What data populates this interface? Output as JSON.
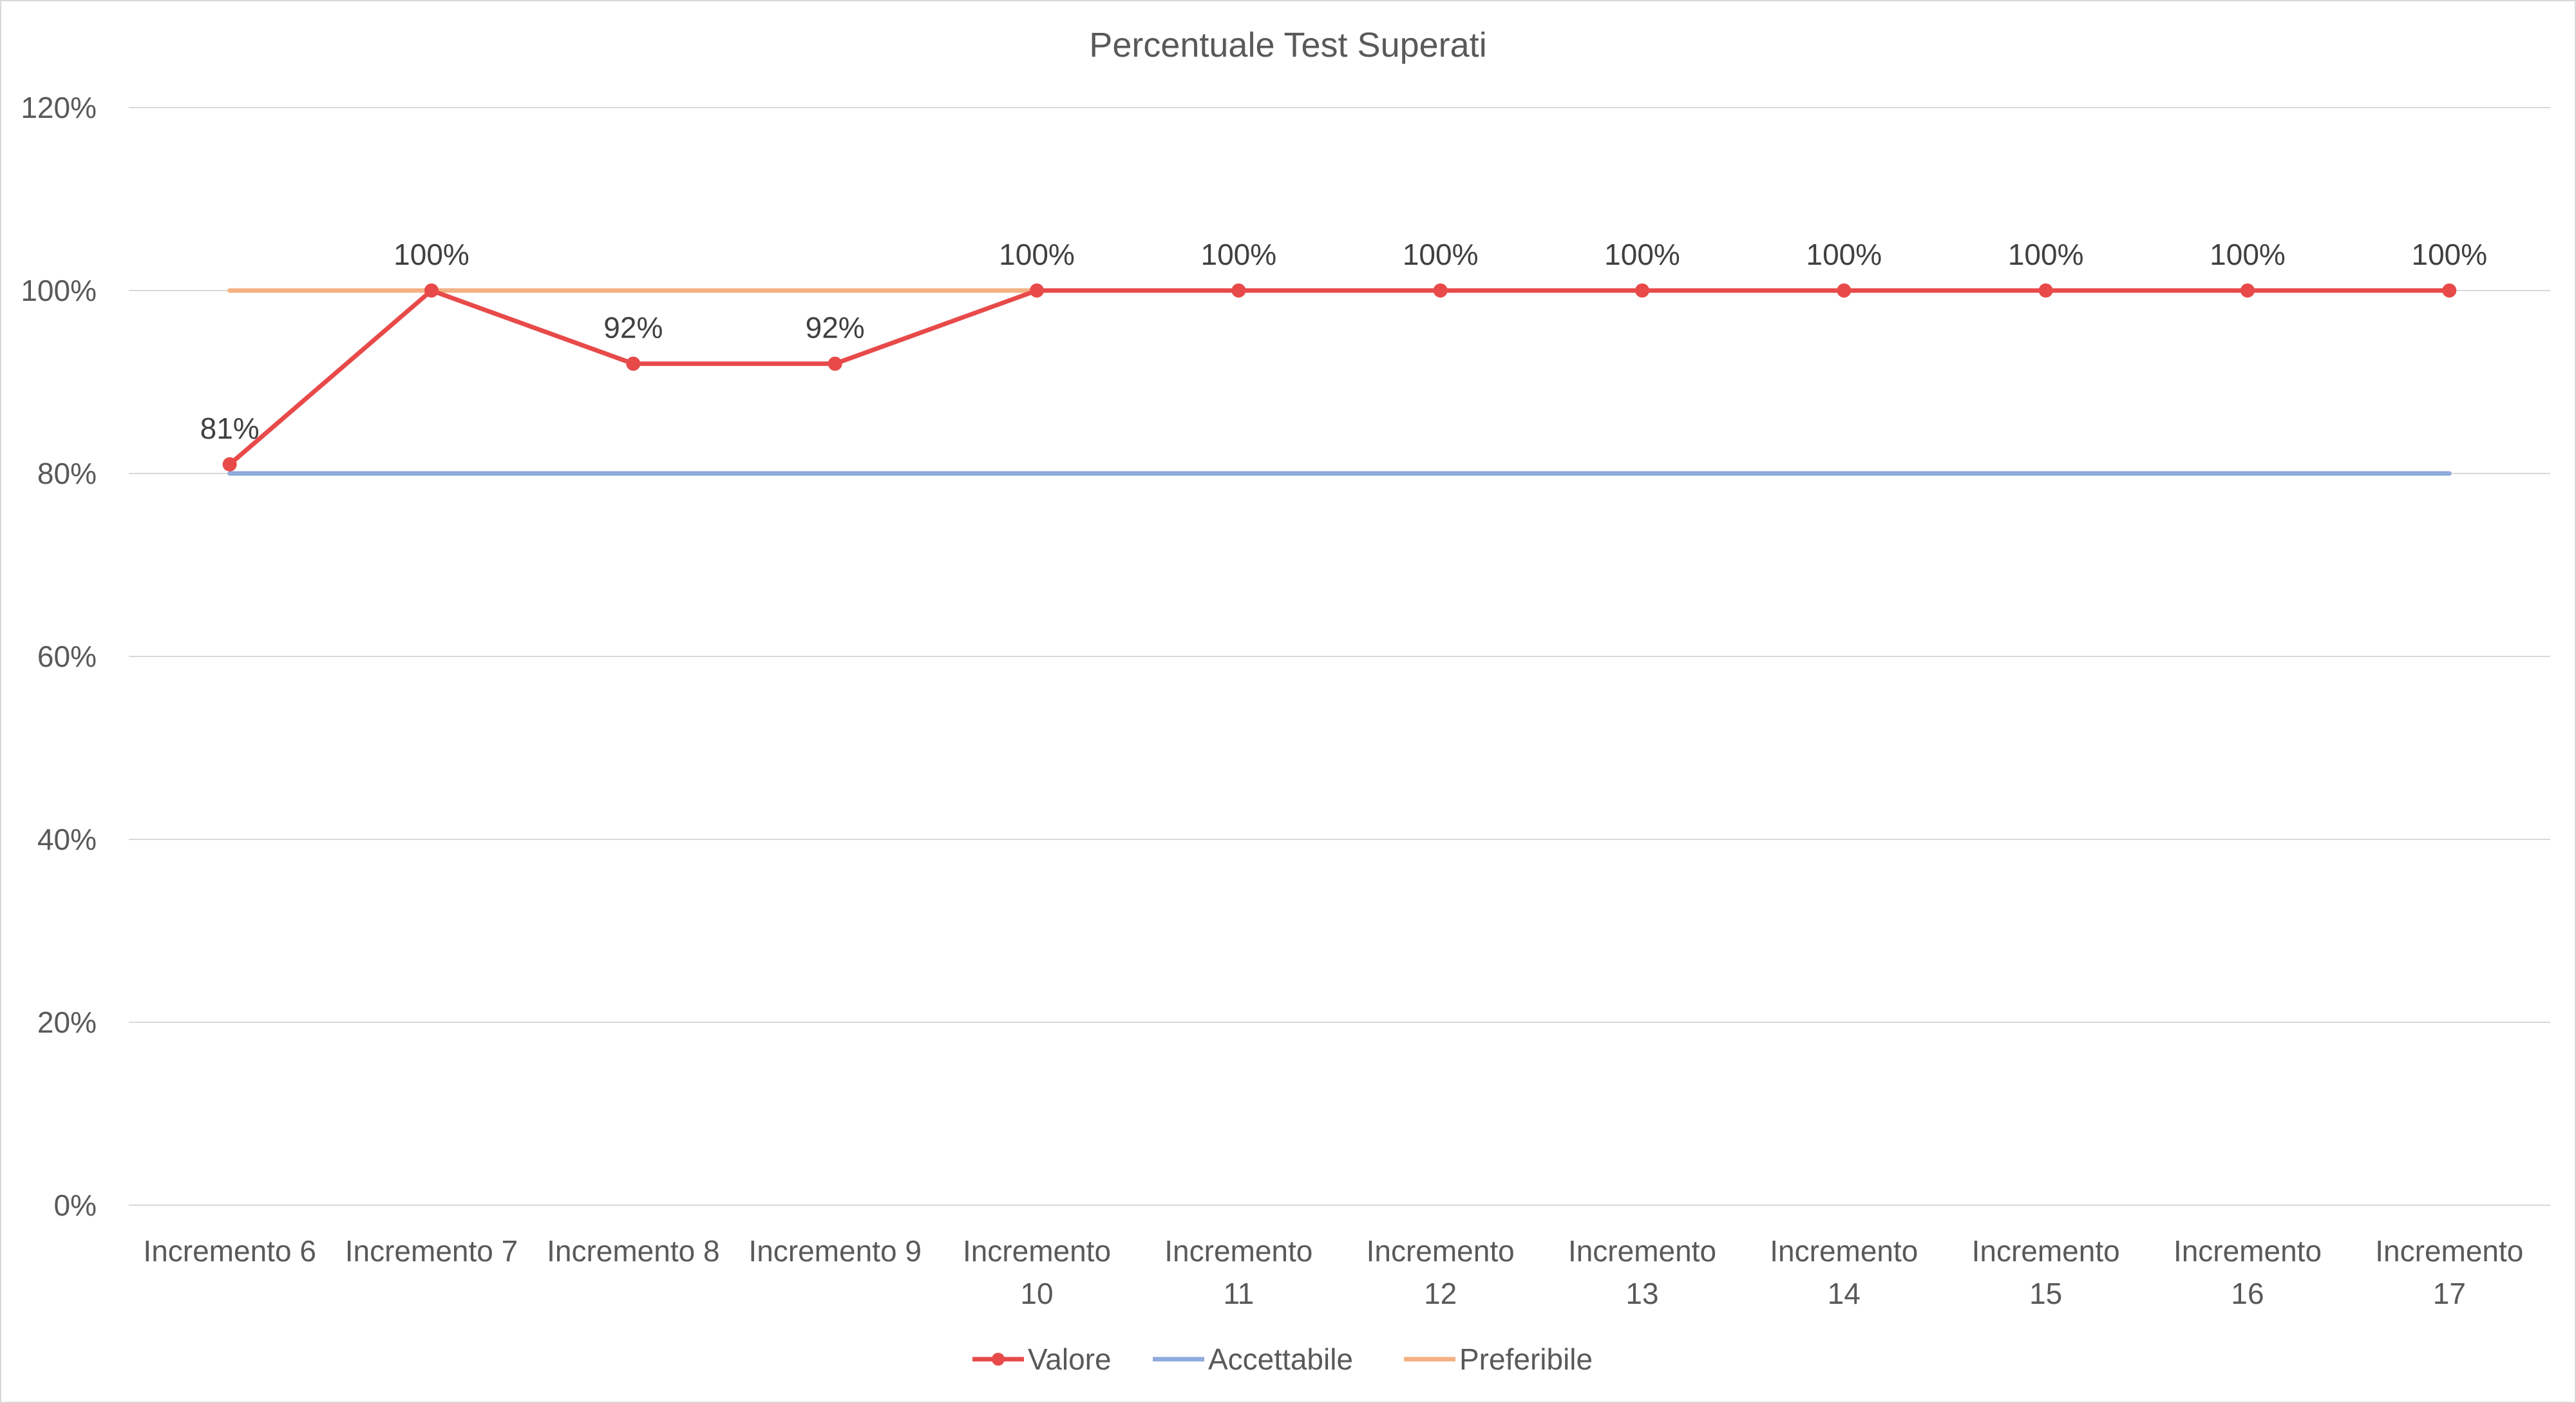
{
  "chart_data": {
    "type": "line",
    "title": "Percentuale Test Superati",
    "xlabel": "",
    "ylabel": "",
    "ylim": [
      0,
      1.2
    ],
    "ytick_step": 0.2,
    "categories": [
      [
        "Incremento 6"
      ],
      [
        "Incremento 7"
      ],
      [
        "Incremento 8"
      ],
      [
        "Incremento 9"
      ],
      [
        "Incremento",
        "10"
      ],
      [
        "Incremento",
        "11"
      ],
      [
        "Incremento",
        "12"
      ],
      [
        "Incremento",
        "13"
      ],
      [
        "Incremento",
        "14"
      ],
      [
        "Incremento",
        "15"
      ],
      [
        "Incremento",
        "16"
      ],
      [
        "Incremento",
        "17"
      ]
    ],
    "series": [
      {
        "name": "Valore",
        "color": "#e84a4a",
        "markers": true,
        "data_labels": true,
        "values": [
          0.81,
          1.0,
          0.92,
          0.92,
          1.0,
          1.0,
          1.0,
          1.0,
          1.0,
          1.0,
          1.0,
          1.0
        ]
      },
      {
        "name": "Accettabile",
        "color": "#8faadc",
        "markers": false,
        "data_labels": false,
        "values": [
          0.8,
          0.8,
          0.8,
          0.8,
          0.8,
          0.8,
          0.8,
          0.8,
          0.8,
          0.8,
          0.8,
          0.8
        ]
      },
      {
        "name": "Preferibile",
        "color": "#f4b183",
        "markers": false,
        "data_labels": false,
        "values": [
          1.0,
          1.0,
          1.0,
          1.0,
          1.0,
          1.0,
          1.0,
          1.0,
          1.0,
          1.0,
          1.0,
          1.0
        ]
      }
    ],
    "grid": true,
    "gridline_color": "#d9d9d9",
    "legend": "bottom-center"
  }
}
